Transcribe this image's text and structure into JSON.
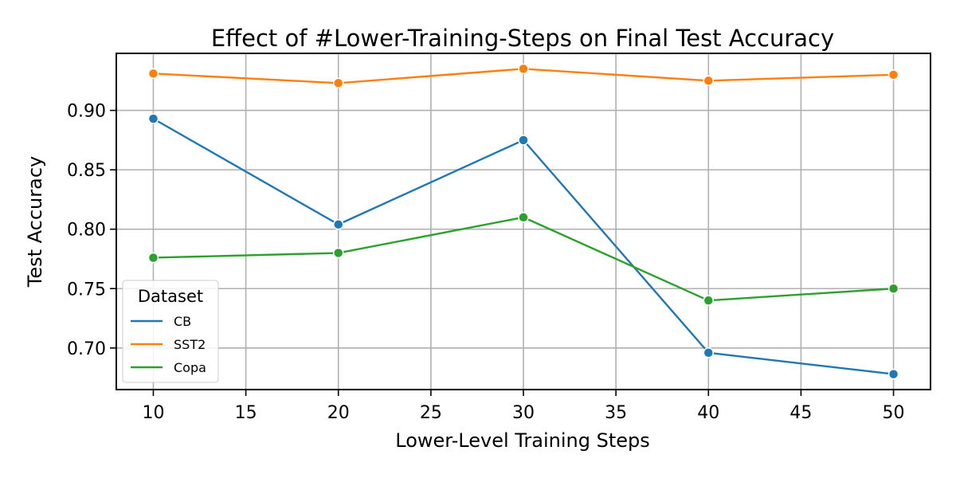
{
  "chart_data": {
    "type": "line",
    "title": "Effect of #Lower-Training-Steps on Final Test Accuracy",
    "xlabel": "Lower-Level Training Steps",
    "ylabel": "Test Accuracy",
    "x": [
      10,
      20,
      30,
      40,
      50
    ],
    "xlim": [
      8,
      52
    ],
    "ylim": [
      0.665,
      0.948
    ],
    "xticks": [
      10,
      15,
      20,
      25,
      30,
      35,
      40,
      45,
      50
    ],
    "yticks": [
      0.7,
      0.75,
      0.8,
      0.85,
      0.9
    ],
    "grid": true,
    "legend": {
      "title": "Dataset",
      "placement": "lower-left"
    },
    "series": [
      {
        "name": "CB",
        "color": "#1f77b4",
        "values": [
          0.893,
          0.804,
          0.875,
          0.696,
          0.678
        ]
      },
      {
        "name": "SST2",
        "color": "#ff7f0e",
        "values": [
          0.931,
          0.923,
          0.935,
          0.925,
          0.93
        ]
      },
      {
        "name": "Copa",
        "color": "#2ca02c",
        "values": [
          0.776,
          0.78,
          0.81,
          0.74,
          0.75
        ]
      }
    ]
  }
}
